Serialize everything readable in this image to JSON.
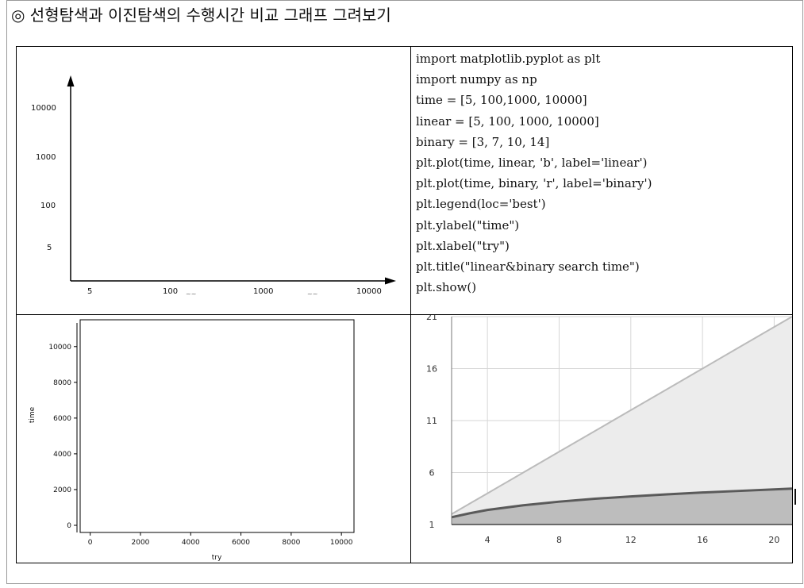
{
  "heading": "◎ 선형탐색과 이진탐색의 수행시간 비교 그래프 그려보기",
  "sketch": {
    "y_ticks": [
      "10000",
      "1000",
      "100",
      "5"
    ],
    "x_ticks": [
      "5",
      "100",
      "~~",
      "1000",
      "~~",
      "10000"
    ]
  },
  "code_lines": [
    "import matplotlib.pyplot as plt",
    "import numpy as np",
    "time = [5, 100,1000, 10000]",
    "linear = [5, 100, 1000, 10000]",
    "binary = [3, 7, 10, 14]",
    "plt.plot(time, linear, 'b', label='linear')",
    "plt.plot(time, binary, 'r', label='binary')",
    "plt.legend(loc='best')",
    "plt.ylabel(\"time\")",
    "plt.xlabel(\"try\")",
    "plt.title(\"linear&binary search time\")",
    "plt.show()"
  ],
  "chart_data": [
    {
      "type": "line",
      "x": [],
      "series": [],
      "xlabel": "try",
      "ylabel": "time",
      "xlim": [
        -400,
        10500
      ],
      "ylim": [
        -400,
        11500
      ],
      "x_ticks": [
        0,
        2000,
        4000,
        6000,
        8000,
        10000
      ],
      "y_ticks": [
        0,
        2000,
        4000,
        6000,
        8000,
        10000
      ],
      "grid": false
    },
    {
      "type": "area",
      "x": [
        2,
        3,
        4,
        6,
        8,
        10,
        12,
        14,
        16,
        18,
        21
      ],
      "series": [
        {
          "values": [
            2,
            3,
            4,
            6,
            8,
            10,
            12,
            14,
            16,
            18,
            21
          ],
          "color": "#bbbbbb",
          "fill": "#ececec"
        },
        {
          "values": [
            1.7,
            2.08,
            2.4,
            2.85,
            3.2,
            3.48,
            3.7,
            3.9,
            4.08,
            4.23,
            4.45
          ],
          "color": "#5a5a5a",
          "fill": "#bdbdbd"
        }
      ],
      "x_ticks": [
        4,
        8,
        12,
        16,
        20
      ],
      "y_ticks": [
        1,
        6,
        11,
        16,
        21
      ],
      "xlim": [
        2,
        21
      ],
      "ylim": [
        1,
        21
      ],
      "grid": true
    }
  ]
}
